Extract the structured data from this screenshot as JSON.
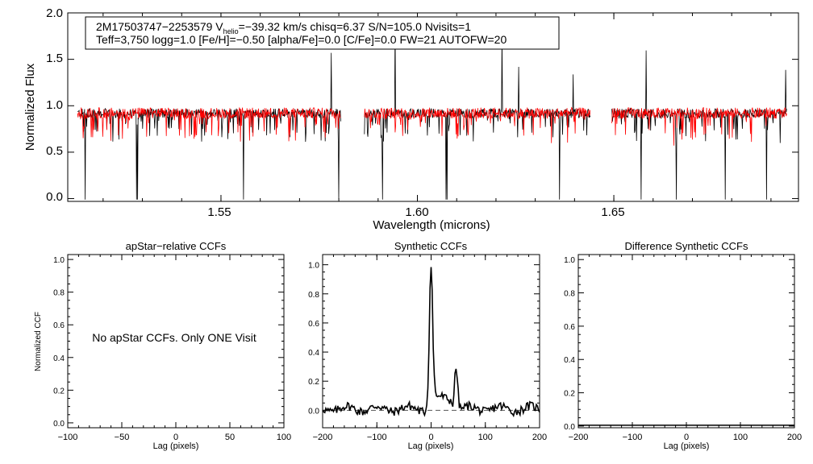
{
  "chart_data": [
    {
      "type": "line",
      "panel": "spectrum",
      "ylabel": "Normalized Flux",
      "xlabel": "Wavelength (microns)",
      "xlim": [
        1.511,
        1.697
      ],
      "ylim": [
        -0.03,
        2.0
      ],
      "x_ticks": [
        "1.55",
        "1.60",
        "1.65"
      ],
      "y_ticks": [
        "0.0",
        "0.5",
        "1.0",
        "1.5",
        "2.0"
      ],
      "annotation": {
        "line1_prefix": "2M17503747−2253579  V",
        "line1_sub": "helio",
        "line1_suffix": "=−39.32 km/s  chisq=6.37  S/N=105.0  Nvisits=1",
        "line2": "Teff=3,750 logg=1.0 [Fe/H]=−0.50 [alpha/Fe]=0.0 [C/Fe]=0.0 FW=21 AUTOFW=20"
      },
      "chips": [
        [
          1.5135,
          1.5805
        ],
        [
          1.5865,
          1.644
        ],
        [
          1.6495,
          1.694
        ]
      ],
      "series": [
        {
          "color": "#000000",
          "continuum": 0.92,
          "noise": 0.05
        },
        {
          "color": "#ff0000",
          "continuum": 0.92,
          "noise": 0.06
        }
      ],
      "grid": false
    },
    {
      "type": "line",
      "panel": "apstar",
      "title": "apStar−relative CCFs",
      "xlabel": "Lag (pixels)",
      "ylabel": "Normalized CCF",
      "xlim": [
        -100,
        100
      ],
      "ylim": [
        -0.03,
        1.03
      ],
      "x_ticks": [
        "−100",
        "−50",
        "0",
        "50",
        "100"
      ],
      "y_ticks": [
        "0.0",
        "0.2",
        "0.4",
        "0.6",
        "0.8",
        "1.0"
      ],
      "message": "No apStar CCFs.  Only ONE Visit"
    },
    {
      "type": "line",
      "panel": "synthetic",
      "title": "Synthetic CCFs",
      "xlabel": "Lag (pixels)",
      "xlim": [
        -200,
        200
      ],
      "ylim": [
        -0.12,
        1.07
      ],
      "x_ticks": [
        "−200",
        "−100",
        "0",
        "100",
        "200"
      ],
      "y_ticks": [
        "0.0",
        "0.2",
        "0.4",
        "0.6",
        "0.8",
        "1.0"
      ],
      "peaks": [
        {
          "x": 0,
          "y": 1.0
        },
        {
          "x": 46,
          "y": 0.3
        }
      ],
      "baseline": 0.0
    },
    {
      "type": "line",
      "panel": "difference",
      "title": "Difference Synthetic CCFs",
      "xlabel": "Lag (pixels)",
      "xlim": [
        -200,
        200
      ],
      "ylim": [
        -0.01,
        1.03
      ],
      "x_ticks": [
        "−200",
        "−100",
        "0",
        "100",
        "200"
      ],
      "y_ticks": [
        "0.0",
        "0.2",
        "0.4",
        "0.6",
        "0.8",
        "1.0"
      ],
      "baseline": 0.0
    }
  ]
}
